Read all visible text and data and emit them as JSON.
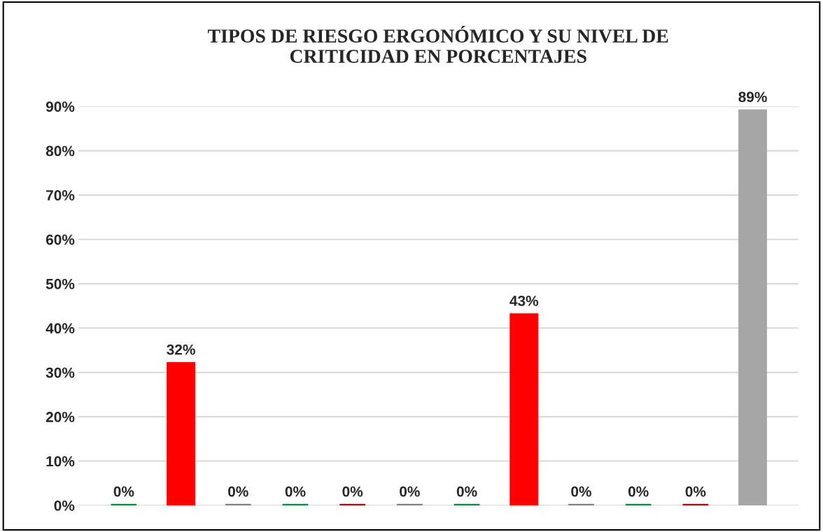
{
  "chart_data": {
    "type": "bar",
    "title": "TIPOS DE RIESGO ERGONÓMICO Y SU NIVEL DE\nCRITICIDAD EN PORCENTAJES",
    "categories": [
      null,
      null,
      null,
      null,
      null,
      null,
      null,
      null,
      null,
      null,
      null,
      null
    ],
    "values": [
      0,
      32,
      0,
      0,
      0,
      0,
      0,
      43,
      0,
      0,
      0,
      89
    ],
    "colors": [
      "#00913f",
      "#ff0000",
      "#808080",
      "#00913f",
      "#c00000",
      "#808080",
      "#00913f",
      "#ff0000",
      "#808080",
      "#00913f",
      "#c00000",
      "#a6a6a6"
    ],
    "value_labels": [
      "0%",
      "32%",
      "0%",
      "0%",
      "0%",
      "0%",
      "0%",
      "43%",
      "0%",
      "0%",
      "0%",
      "89%"
    ],
    "ylim": [
      0,
      90
    ],
    "yticks": [
      {
        "value": 0,
        "label": "0%"
      },
      {
        "value": 10,
        "label": "10%"
      },
      {
        "value": 20,
        "label": "20%"
      },
      {
        "value": 30,
        "label": "30%"
      },
      {
        "value": 40,
        "label": "40%"
      },
      {
        "value": 50,
        "label": "50%"
      },
      {
        "value": 60,
        "label": "60%"
      },
      {
        "value": 70,
        "label": "70%"
      },
      {
        "value": 80,
        "label": "80%"
      },
      {
        "value": 90,
        "label": "90%"
      }
    ],
    "grid": "y"
  }
}
